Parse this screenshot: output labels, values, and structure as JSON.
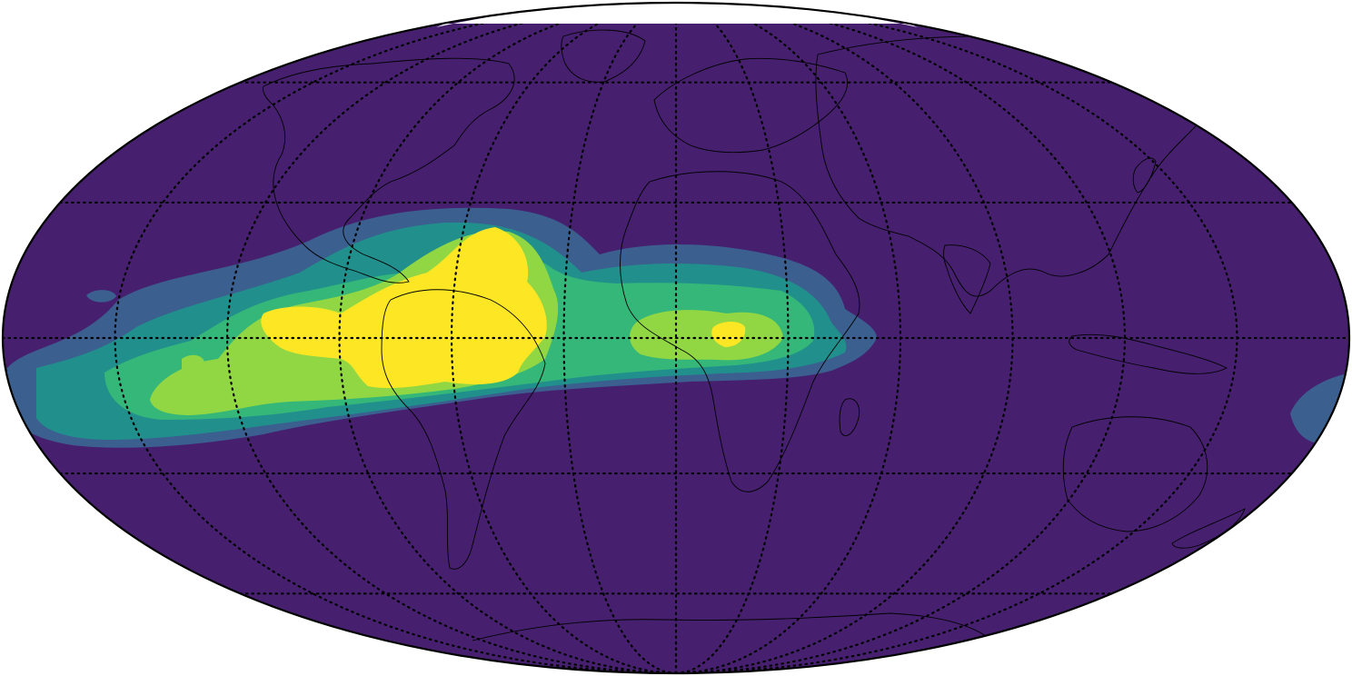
{
  "map": {
    "projection": "mollweide",
    "background_color": "#46206f",
    "graticule": {
      "parallels_deg": [
        -60,
        -30,
        0,
        30,
        60
      ],
      "meridians_step_deg": 30,
      "style": "dotted"
    },
    "field_levels": [
      {
        "level": 1,
        "color": "#3b5f8f"
      },
      {
        "level": 2,
        "color": "#21908c"
      },
      {
        "level": 3,
        "color": "#35b779"
      },
      {
        "level": 4,
        "color": "#90d743"
      },
      {
        "level": 5,
        "color": "#fde725"
      }
    ],
    "description_features": [
      "coastlines",
      "graticule",
      "filled-contours"
    ]
  }
}
